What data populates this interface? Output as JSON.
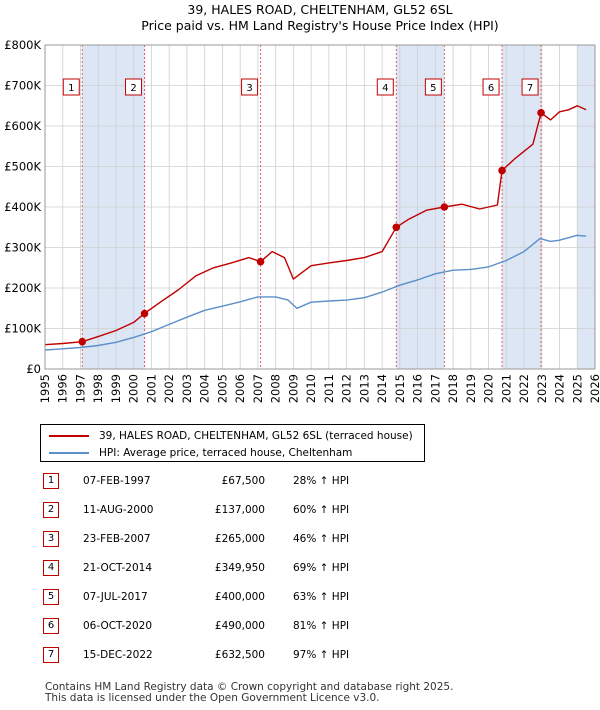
{
  "chart_data": {
    "type": "line",
    "title": "39, HALES ROAD, CHELTENHAM, GL52 6SL",
    "subtitle": "Price paid vs. HM Land Registry's House Price Index (HPI)",
    "xlim": [
      1995,
      2026
    ],
    "ylim": [
      0,
      800000
    ],
    "x_ticks": [
      "1995",
      "1996",
      "1997",
      "1998",
      "1999",
      "2000",
      "2001",
      "2002",
      "2003",
      "2004",
      "2005",
      "2006",
      "2007",
      "2008",
      "2009",
      "2010",
      "2011",
      "2012",
      "2013",
      "2014",
      "2015",
      "2016",
      "2017",
      "2018",
      "2019",
      "2020",
      "2021",
      "2022",
      "2023",
      "2024",
      "2025",
      "2026"
    ],
    "y_ticks": [
      {
        "value": 0,
        "label": "£0"
      },
      {
        "value": 100000,
        "label": "£100K"
      },
      {
        "value": 200000,
        "label": "£200K"
      },
      {
        "value": 300000,
        "label": "£300K"
      },
      {
        "value": 400000,
        "label": "£400K"
      },
      {
        "value": 500000,
        "label": "£500K"
      },
      {
        "value": 600000,
        "label": "£600K"
      },
      {
        "value": 700000,
        "label": "£700K"
      },
      {
        "value": 800000,
        "label": "£800K"
      }
    ],
    "grid": true,
    "colors": {
      "property": "#c00000",
      "hpi": "#5b8fc9",
      "shade": "#dce6f5",
      "vline": "#e06060"
    },
    "series": [
      {
        "name": "39, HALES ROAD, CHELTENHAM, GL52 6SL (terraced house)",
        "x": [
          1995.0,
          1996.0,
          1997.1,
          1998.0,
          1999.0,
          2000.0,
          2000.6,
          2001.5,
          2002.5,
          2003.5,
          2004.5,
          2005.5,
          2006.5,
          2007.15,
          2007.8,
          2008.5,
          2009.0,
          2010.0,
          2011.0,
          2012.0,
          2013.0,
          2014.0,
          2014.8,
          2015.5,
          2016.5,
          2017.5,
          2018.5,
          2019.5,
          2020.5,
          2020.76,
          2021.5,
          2022.5,
          2022.96,
          2023.5,
          2024.0,
          2024.5,
          2025.0,
          2025.5
        ],
        "values": [
          60000,
          63000,
          67500,
          80000,
          95000,
          115000,
          137000,
          165000,
          195000,
          230000,
          250000,
          262000,
          275000,
          265000,
          290000,
          275000,
          222000,
          255000,
          262000,
          268000,
          275000,
          290000,
          349950,
          370000,
          392000,
          400000,
          407000,
          395000,
          405000,
          490000,
          520000,
          555000,
          632500,
          615000,
          635000,
          640000,
          650000,
          640000
        ]
      },
      {
        "name": "HPI: Average price, terraced house, Cheltenham",
        "x": [
          1995.0,
          1996.0,
          1997.0,
          1998.0,
          1999.0,
          2000.0,
          2001.0,
          2002.0,
          2003.0,
          2004.0,
          2005.0,
          2006.0,
          2007.0,
          2008.0,
          2008.7,
          2009.2,
          2010.0,
          2011.0,
          2012.0,
          2013.0,
          2014.0,
          2015.0,
          2016.0,
          2017.0,
          2018.0,
          2019.0,
          2020.0,
          2021.0,
          2022.0,
          2022.9,
          2023.5,
          2024.0,
          2025.0,
          2025.5
        ],
        "values": [
          47000,
          50000,
          53000,
          58000,
          66000,
          78000,
          92000,
          110000,
          128000,
          145000,
          155000,
          166000,
          178000,
          178000,
          170000,
          150000,
          165000,
          168000,
          170000,
          176000,
          190000,
          207000,
          220000,
          235000,
          244000,
          246000,
          252000,
          268000,
          290000,
          322000,
          315000,
          318000,
          330000,
          328000
        ]
      }
    ],
    "sales": [
      {
        "num": "1",
        "x": 1997.1,
        "value": 67500,
        "date": "07-FEB-1997",
        "price": "£67,500",
        "hpi": "28% ↑ HPI"
      },
      {
        "num": "2",
        "x": 2000.61,
        "value": 137000,
        "date": "11-AUG-2000",
        "price": "£137,000",
        "hpi": "60% ↑ HPI"
      },
      {
        "num": "3",
        "x": 2007.15,
        "value": 265000,
        "date": "23-FEB-2007",
        "price": "£265,000",
        "hpi": "46% ↑ HPI"
      },
      {
        "num": "4",
        "x": 2014.8,
        "value": 349950,
        "date": "21-OCT-2014",
        "price": "£349,950",
        "hpi": "69% ↑ HPI"
      },
      {
        "num": "5",
        "x": 2017.51,
        "value": 400000,
        "date": "07-JUL-2017",
        "price": "£400,000",
        "hpi": "63% ↑ HPI"
      },
      {
        "num": "6",
        "x": 2020.76,
        "value": 490000,
        "date": "06-OCT-2020",
        "price": "£490,000",
        "hpi": "81% ↑ HPI"
      },
      {
        "num": "7",
        "x": 2022.96,
        "value": 632500,
        "date": "15-DEC-2022",
        "price": "£632,500",
        "hpi": "97% ↑ HPI"
      }
    ],
    "shaded_ranges": [
      [
        1997.1,
        2000.61
      ],
      [
        2014.8,
        2017.51
      ],
      [
        2020.76,
        2022.96
      ],
      [
        2025.0,
        2026.0
      ]
    ]
  },
  "legend": {
    "property_label": "39, HALES ROAD, CHELTENHAM, GL52 6SL (terraced house)",
    "hpi_label": "HPI: Average price, terraced house, Cheltenham"
  },
  "footer": {
    "line1": "Contains HM Land Registry data © Crown copyright and database right 2025.",
    "line2": "This data is licensed under the Open Government Licence v3.0."
  }
}
